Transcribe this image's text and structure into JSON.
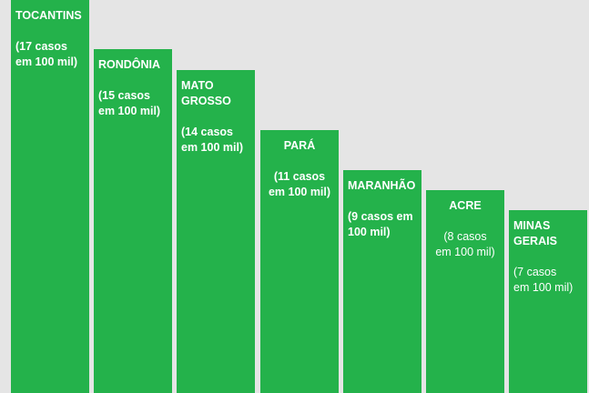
{
  "chart_data": {
    "type": "bar",
    "unit": "casos em 100 mil",
    "color": "#24b24b",
    "background": "#e5e5e5",
    "categories": [
      "TOCANTINS",
      "RONDÔNIA",
      "MATO GROSSO",
      "PARÁ",
      "MARANHÃO",
      "ACRE",
      "MINAS GERAIS"
    ],
    "values": [
      17,
      15,
      14,
      11,
      9,
      8,
      7
    ],
    "bars": [
      {
        "label": "TOCANTINS",
        "text": "(17 casos\nem 100 mil)",
        "value": 17,
        "align": "left",
        "bold_cases": true
      },
      {
        "label": "RONDÔNIA",
        "text": "(15 casos\nem 100 mil)",
        "value": 15,
        "align": "left",
        "bold_cases": true
      },
      {
        "label": "MATO\nGROSSO",
        "text": "(14 casos\nem 100 mil)",
        "value": 14,
        "align": "left",
        "bold_cases": true
      },
      {
        "label": "PARÁ",
        "text": "(11 casos\nem 100 mil)",
        "value": 11,
        "align": "center",
        "bold_cases": true
      },
      {
        "label": "MARANHÃO",
        "text": "(9 casos em\n100 mil)",
        "value": 9,
        "align": "left",
        "bold_cases": true
      },
      {
        "label": "ACRE",
        "text": "(8 casos\nem 100 mil)",
        "value": 8,
        "align": "center",
        "bold_cases": false
      },
      {
        "label": "MINAS\nGERAIS",
        "text": "(7 casos\nem 100 mil)",
        "value": 7,
        "align": "left",
        "bold_cases": false
      }
    ]
  }
}
